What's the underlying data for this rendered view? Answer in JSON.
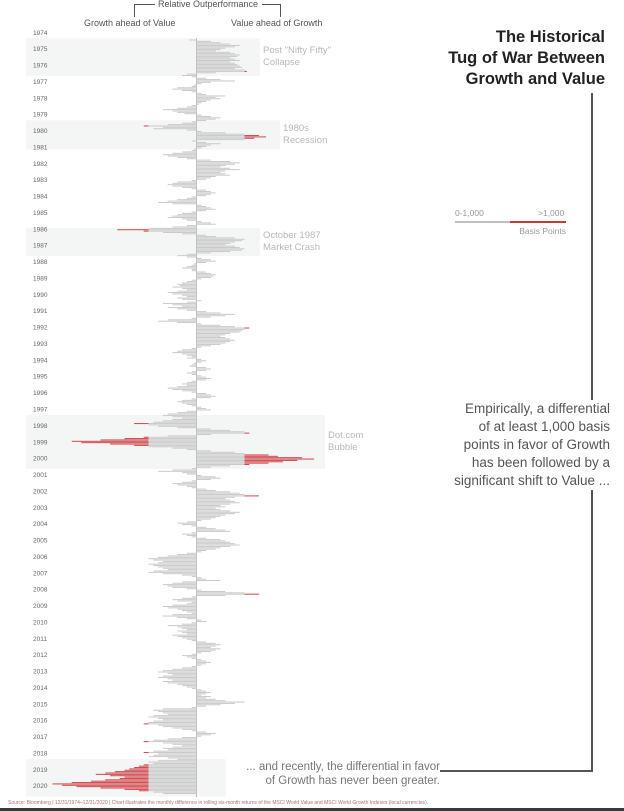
{
  "header": {
    "relative_label": "Relative Outperformance",
    "left_label": "Growth ahead of Value",
    "right_label": "Value ahead of Growth"
  },
  "title_lines": [
    "The Historical",
    "Tug of War Between",
    "Growth and Value"
  ],
  "legend": {
    "low_label": "0-1,000",
    "high_label": ">1,000",
    "units": "Basis Points"
  },
  "callout_lines": [
    "Empirically, a differential",
    "of at least 1,000 basis",
    "points in favor of Growth",
    "has been followed by a",
    "significant shift to Value ..."
  ],
  "bottom_callout_lines": [
    "... and recently, the differential in favor",
    "of Growth has never been greater."
  ],
  "footer": "Source: Bloomberg | 12/31/1974–12/31/2020 | Chart illustrates the monthly difference in rolling six-month returns of the MSCI World Value and MSCI World Growth Indexes (local currencies).",
  "colors": {
    "normal": "#c9c9c9",
    "extreme": "#d0464a",
    "band": "#f4f6f5",
    "axis": "#bdbdbd"
  },
  "chart_data": {
    "type": "bar",
    "orientation": "horizontal-diverging",
    "units": "basis points",
    "threshold": 1000,
    "xlim": [
      -3200,
      3200
    ],
    "positive_meaning": "Value ahead of Growth",
    "negative_meaning": "Growth ahead of Value",
    "year_labels": [
      "1974",
      "1975",
      "1976",
      "1977",
      "1978",
      "1979",
      "1980",
      "1981",
      "1982",
      "1983",
      "1984",
      "1985",
      "1986",
      "1987",
      "1988",
      "1989",
      "1990",
      "1991",
      "1992",
      "1993",
      "1994",
      "1995",
      "1996",
      "1997",
      "1998",
      "1999",
      "2000",
      "2001",
      "2002",
      "2003",
      "2004",
      "2005",
      "2006",
      "2007",
      "2008",
      "2009",
      "2010",
      "2011",
      "2012",
      "2013",
      "2014",
      "2015",
      "2016",
      "2017",
      "2018",
      "2019",
      "2020"
    ],
    "bands": [
      {
        "from": "1975-01",
        "to": "1976-12",
        "label_lines": [
          "Post \"Nifty Fifty\"",
          "Collapse"
        ]
      },
      {
        "from": "1980-01",
        "to": "1981-06",
        "label_lines": [
          "1980s",
          "Recession"
        ]
      },
      {
        "from": "1986-08",
        "to": "1987-12",
        "label_lines": [
          "October 1987",
          "Market Crash"
        ]
      },
      {
        "from": "1998-01",
        "to": "2000-12",
        "label_lines": [
          "Dot.com",
          "Bubble"
        ]
      },
      {
        "from": "2019-01",
        "to": "2020-12",
        "label_lines": []
      }
    ],
    "monthly": {
      "1974": [
        -150
      ],
      "1975": [
        300,
        500,
        700,
        900,
        800,
        600,
        500,
        400,
        700,
        800,
        900,
        850
      ],
      "1976": [
        700,
        800,
        900,
        700,
        800,
        850,
        900,
        950,
        800,
        1000,
        1050,
        400
      ],
      "1977": [
        -200,
        -300,
        -100,
        200,
        500,
        800,
        300,
        100,
        -50,
        -100,
        -400,
        -500
      ],
      "1978": [
        -300,
        -100,
        100,
        200,
        600,
        400,
        500,
        300,
        200,
        100,
        50,
        -100
      ],
      "1979": [
        -200,
        -400,
        -700,
        -500,
        -400,
        -250,
        100,
        300,
        500,
        400,
        200,
        -100
      ],
      "1980": [
        -300,
        -600,
        -1100,
        -700,
        -900,
        -200,
        100,
        600,
        1000,
        1300,
        1450,
        1200
      ],
      "1981": [
        1000,
        -100,
        200,
        500,
        300,
        200,
        100,
        -50,
        -100,
        -300,
        -500,
        -700
      ],
      "1982": [
        -600,
        -400,
        -200,
        300,
        700,
        900,
        800,
        600,
        500,
        700,
        900,
        600
      ],
      "1983": [
        500,
        600,
        700,
        400,
        300,
        200,
        -100,
        -400,
        -500,
        -600,
        -500,
        -300
      ],
      "1984": [
        -100,
        200,
        300,
        400,
        300,
        200,
        -100,
        -200,
        -400,
        -600,
        -800,
        -500
      ],
      "1985": [
        100,
        200,
        300,
        400,
        200,
        -100,
        -300,
        -400,
        -500,
        -600,
        -300,
        -200
      ],
      "1986": [
        100,
        300,
        400,
        -200,
        -500,
        -1000,
        -1650,
        -1100,
        -700,
        -300,
        200,
        400
      ],
      "1987": [
        800,
        1000,
        950,
        800,
        700,
        600,
        800,
        900,
        1000,
        950,
        700,
        300
      ],
      "1988": [
        -200,
        -400,
        -200,
        100,
        300,
        400,
        200,
        -50,
        -100,
        -200,
        -300,
        -100
      ],
      "1989": [
        -100,
        200,
        300,
        400,
        350,
        300,
        100,
        -100,
        -200,
        -300,
        -400,
        -350
      ],
      "1990": [
        -500,
        -300,
        -200,
        -400,
        -600,
        -500,
        -300,
        -200,
        -400,
        -300,
        100,
        -200
      ],
      "1991": [
        -700,
        -500,
        -300,
        -600,
        -400,
        -200,
        200,
        500,
        800,
        600,
        300,
        -100
      ],
      "1992": [
        -600,
        -800,
        -400,
        100,
        500,
        800,
        1100,
        1000,
        950,
        900,
        700,
        600
      ],
      "1993": [
        500,
        600,
        700,
        800,
        700,
        600,
        500,
        300,
        100,
        -100,
        -300,
        -400
      ],
      "1994": [
        -500,
        -300,
        -200,
        -100,
        -200,
        100,
        200,
        100,
        -50,
        -100,
        -150,
        200
      ],
      "1995": [
        300,
        200,
        -100,
        -200,
        -100,
        100,
        200,
        300,
        200,
        -100,
        -200,
        -300
      ],
      "1996": [
        -200,
        -400,
        -600,
        -500,
        -300,
        -100,
        200,
        300,
        400,
        300,
        -100,
        -300
      ],
      "1997": [
        -400,
        -300,
        -200,
        -100,
        100,
        200,
        300,
        -200,
        -400,
        -600,
        -700,
        -500
      ],
      "1998": [
        -300,
        -500,
        -700,
        -900,
        -1300,
        -1000,
        -800,
        -400,
        300,
        700,
        1000,
        1100
      ],
      "1999": [
        300,
        -600,
        -1100,
        -1500,
        -2000,
        -2600,
        -2400,
        -1800,
        -1300,
        -1000,
        -500,
        -200
      ],
      "2000": [
        300,
        800,
        1000,
        1500,
        1700,
        2200,
        2450,
        2100,
        1800,
        1500,
        1100,
        700
      ],
      "2001": [
        300,
        -100,
        -500,
        -800,
        -300,
        -200,
        100,
        400,
        500,
        300,
        -100,
        -300
      ],
      "2002": [
        -500,
        -400,
        -200,
        -100,
        200,
        400,
        700,
        900,
        1000,
        1300,
        800,
        600
      ],
      "2003": [
        700,
        800,
        900,
        700,
        500,
        600,
        400,
        500,
        700,
        900,
        800,
        600
      ],
      "2004": [
        500,
        400,
        300,
        100,
        -200,
        -400,
        -300,
        -100,
        200,
        400,
        600,
        700
      ],
      "2005": [
        -100,
        -300,
        -200,
        -100,
        200,
        500,
        600,
        700,
        800,
        900,
        700,
        500
      ],
      "2006": [
        400,
        200,
        100,
        -200,
        -400,
        -600,
        -800,
        -1000,
        -900,
        -700,
        -800,
        -1000
      ],
      "2007": [
        -900,
        -800,
        -700,
        -600,
        -900,
        -1000,
        -700,
        -300,
        -100,
        100,
        200,
        500
      ],
      "2008": [
        -300,
        -500,
        -700,
        -600,
        -500,
        -200,
        100,
        600,
        1000,
        1300,
        600,
        -100
      ],
      "2009": [
        -300,
        -500,
        -400,
        -100,
        -200,
        -500,
        -700,
        -600,
        -400,
        -300,
        -200,
        -100
      ],
      "2010": [
        -500,
        -700,
        -400,
        -200,
        100,
        200,
        -100,
        -300,
        -600,
        -400,
        -300,
        -200
      ],
      "2011": [
        -400,
        -300,
        -200,
        -500,
        -400,
        -300,
        -200,
        -100,
        200,
        400,
        500,
        400
      ],
      "2012": [
        300,
        500,
        400,
        300,
        100,
        -100,
        -300,
        -200,
        -100,
        100,
        200,
        300
      ],
      "2013": [
        200,
        100,
        -100,
        -300,
        -500,
        -700,
        -800,
        -600,
        -500,
        -700,
        -800,
        -600
      ],
      "2014": [
        -500,
        -700,
        -600,
        -400,
        -300,
        -200,
        -100,
        100,
        200,
        300,
        200,
        100
      ],
      "2015": [
        300,
        200,
        400,
        600,
        1000,
        800,
        500,
        200,
        -100,
        -700,
        -900,
        -800
      ],
      "2016": [
        -700,
        -600,
        -900,
        -1000,
        -800,
        -700,
        -900,
        -1000,
        -1100,
        -800,
        -700,
        -500
      ],
      "2017": [
        -300,
        -100,
        200,
        400,
        300,
        100,
        -300,
        -600,
        -900,
        -1100,
        -700,
        -500
      ],
      "2018": [
        -300,
        -500,
        -700,
        -600,
        -900,
        -1100,
        -800,
        -900,
        -1000,
        -600,
        -400,
        -800
      ],
      "2019": [
        -1000,
        -900,
        -1100,
        -1200,
        -1300,
        -1400,
        -1500,
        -1700,
        -1900,
        -2100,
        -1800,
        -1500
      ],
      "2020": [
        -1600,
        -1900,
        -2200,
        -2600,
        -3000,
        -2800,
        -2500,
        -2000,
        -1500,
        -1200,
        -900,
        -700
      ]
    }
  }
}
